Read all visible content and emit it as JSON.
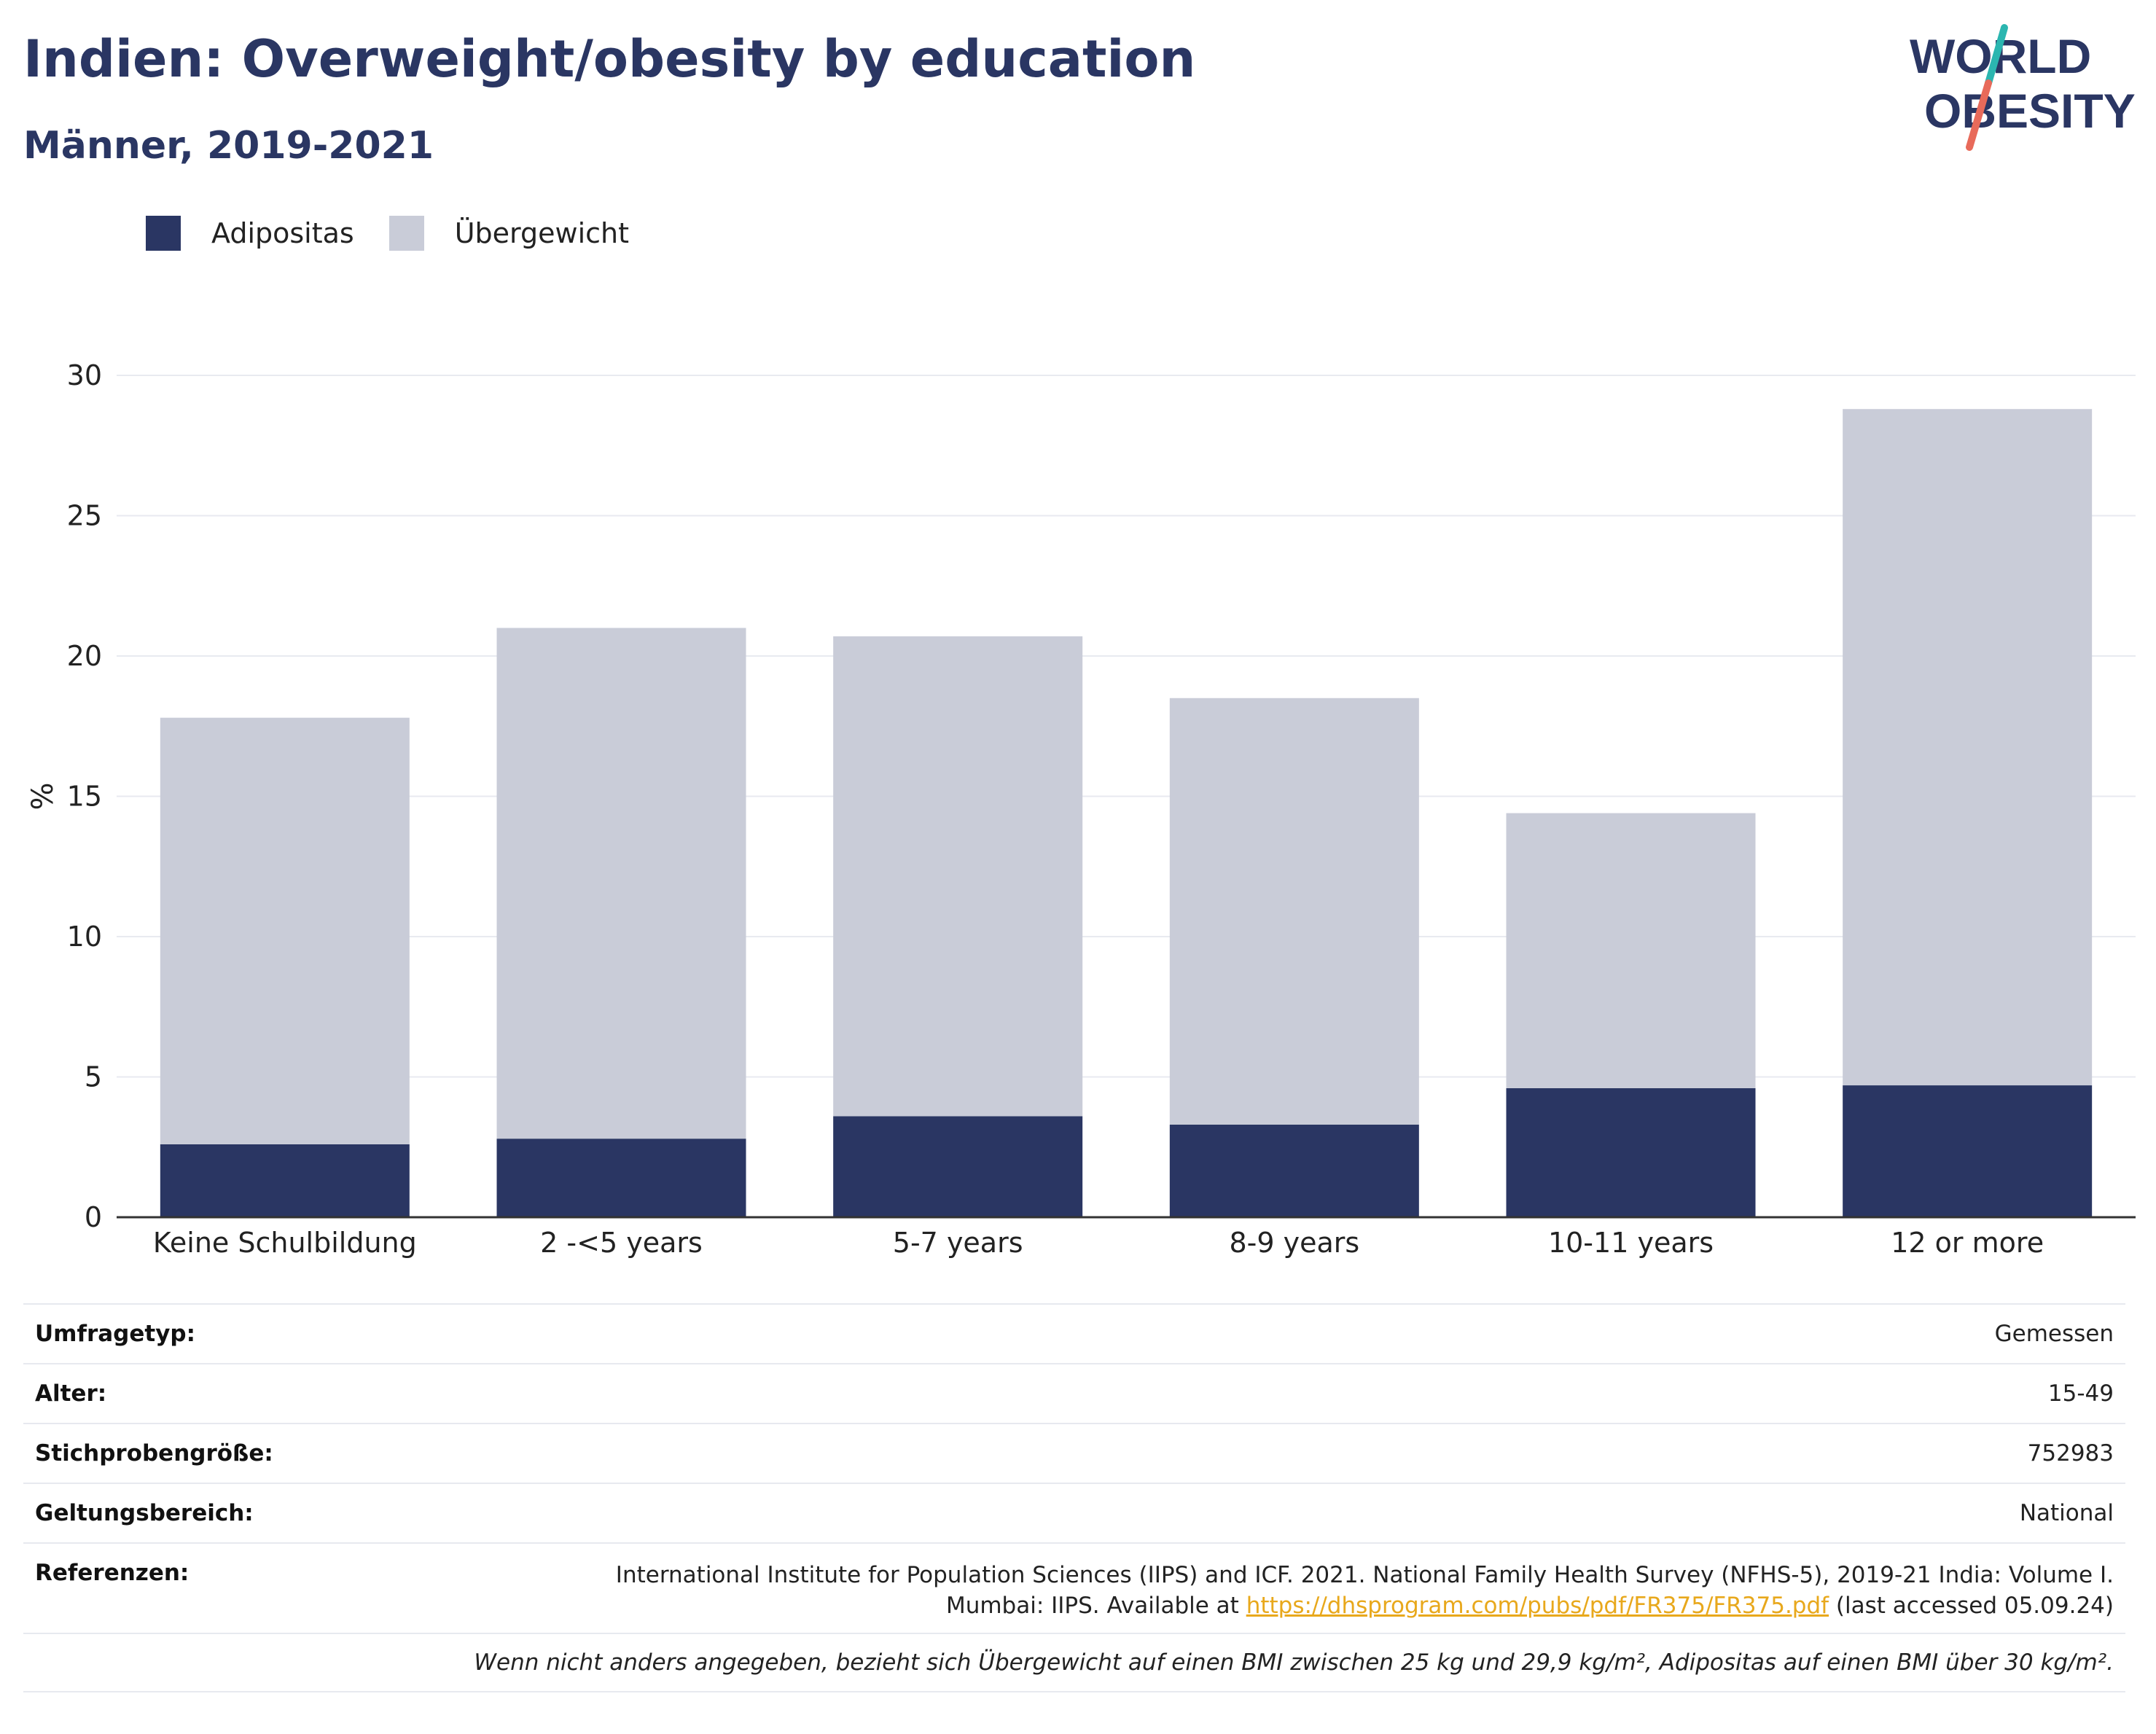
{
  "header": {
    "title": "Indien: Overweight/obesity by education",
    "subtitle": "Männer, 2019-2021"
  },
  "logo": {
    "line1": "WORLD",
    "line2": "OBESITY",
    "accent_teal": "#2bb6b0",
    "accent_red": "#e86a5a",
    "text_color": "#2a3663"
  },
  "legend": {
    "items": [
      {
        "label": "Adipositas",
        "color": "#2a3663"
      },
      {
        "label": "Übergewicht",
        "color": "#c9ccd8"
      }
    ]
  },
  "chart_data": {
    "type": "bar",
    "stacked": true,
    "categories": [
      "Keine Schulbildung",
      "2 -<5 years",
      "5-7 years",
      "8-9 years",
      "10-11 years",
      "12 or more"
    ],
    "series": [
      {
        "name": "Adipositas",
        "values": [
          2.6,
          2.8,
          3.6,
          3.3,
          4.6,
          4.7
        ]
      },
      {
        "name": "Übergewicht",
        "values": [
          15.2,
          18.2,
          17.1,
          15.2,
          9.8,
          24.1
        ]
      }
    ],
    "ylabel": "%",
    "ylim": [
      0,
      30
    ],
    "yticks": [
      0,
      5,
      10,
      15,
      20,
      25,
      30
    ],
    "grid": true,
    "legend_position": "top-left"
  },
  "meta": {
    "rows": [
      {
        "key": "Umfragetyp:",
        "value": "Gemessen"
      },
      {
        "key": "Alter:",
        "value": "15-49"
      },
      {
        "key": "Stichprobengröße:",
        "value": "752983"
      },
      {
        "key": "Geltungsbereich:",
        "value": "National"
      }
    ],
    "references": {
      "key": "Referenzen:",
      "line1": "International Institute for Population Sciences (IIPS) and ICF. 2021. National Family Health Survey (NFHS-5), 2019-21 India: Volume I.",
      "line2_prefix": "Mumbai: IIPS. Available at ",
      "link": "https://dhsprogram.com/pubs/pdf/FR375/FR375.pdf",
      "line2_suffix": " (last accessed 05.09.24)"
    },
    "note": "Wenn nicht anders angegeben, bezieht sich Übergewicht auf einen BMI zwischen 25 kg und 29,9 kg/m², Adipositas auf einen BMI über 30 kg/m²."
  }
}
